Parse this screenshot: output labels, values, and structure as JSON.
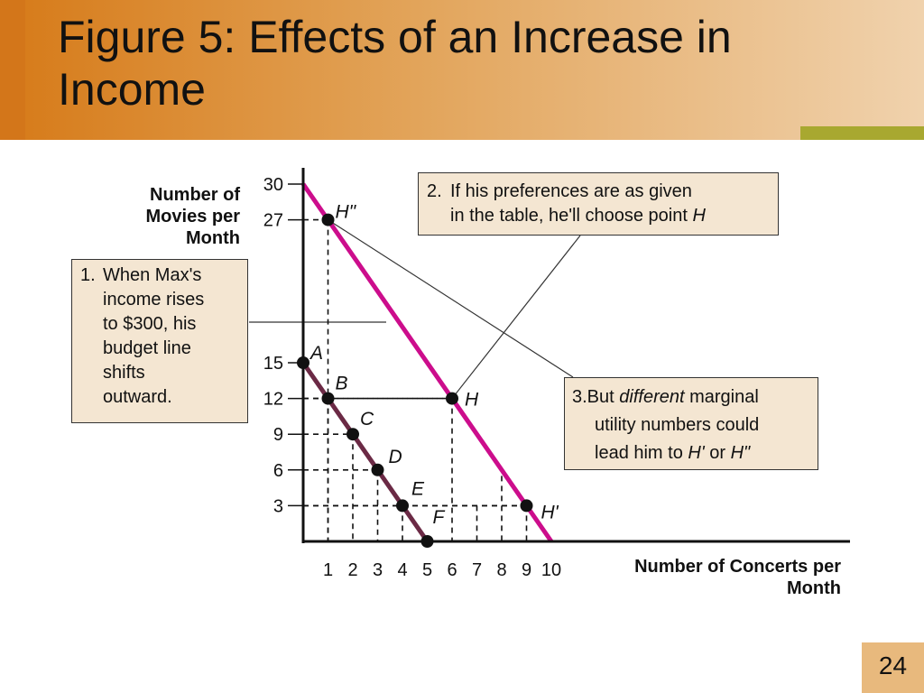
{
  "slide": {
    "title": "Figure 5:  Effects of an Increase in Income",
    "page_number": "24",
    "colors": {
      "title_band": "#e2a45a",
      "accent_strip": "#a8a830",
      "callout_bg": "#f4e6d2"
    }
  },
  "callouts": {
    "c1": {
      "num": "1.",
      "lines": [
        "When Max's",
        "income rises",
        "to $300, his",
        "budget line",
        "shifts",
        "outward."
      ]
    },
    "c2": {
      "num": "2.",
      "line1": "If his preferences are as given",
      "line2": "in the table, he'll choose point ",
      "line2_italic": "H"
    },
    "c3": {
      "line1_a": "3.But ",
      "line1_italic": "different",
      "line1_b": " marginal",
      "line2": "utility numbers could",
      "line3_a": "lead him to ",
      "line3_i1": "H'",
      "line3_b": " or ",
      "line3_i2": "H\""
    }
  },
  "chart_data": {
    "type": "line",
    "xlabel": "Number of Concerts per Month",
    "ylabel": "Number of Movies per Month",
    "xlim": [
      0,
      10
    ],
    "ylim": [
      0,
      30
    ],
    "x_ticks": [
      1,
      2,
      3,
      4,
      5,
      6,
      7,
      8,
      9,
      10
    ],
    "y_ticks": [
      3,
      6,
      9,
      12,
      15,
      27,
      30
    ],
    "series": [
      {
        "color": "#6b2a45",
        "points": [
          [
            0,
            15
          ],
          [
            5,
            0
          ]
        ]
      },
      {
        "color": "#cc0d8c",
        "points": [
          [
            0,
            30
          ],
          [
            10,
            0
          ]
        ]
      }
    ],
    "points": [
      {
        "label": "A",
        "x": 0,
        "y": 15
      },
      {
        "label": "B",
        "x": 1,
        "y": 12
      },
      {
        "label": "C",
        "x": 2,
        "y": 9
      },
      {
        "label": "D",
        "x": 3,
        "y": 6
      },
      {
        "label": "E",
        "x": 4,
        "y": 3
      },
      {
        "label": "F",
        "x": 5,
        "y": 0
      },
      {
        "label": "H",
        "x": 6,
        "y": 12
      },
      {
        "label": "H'",
        "x": 9,
        "y": 3
      },
      {
        "label": "H\"",
        "x": 1,
        "y": 27
      }
    ]
  }
}
